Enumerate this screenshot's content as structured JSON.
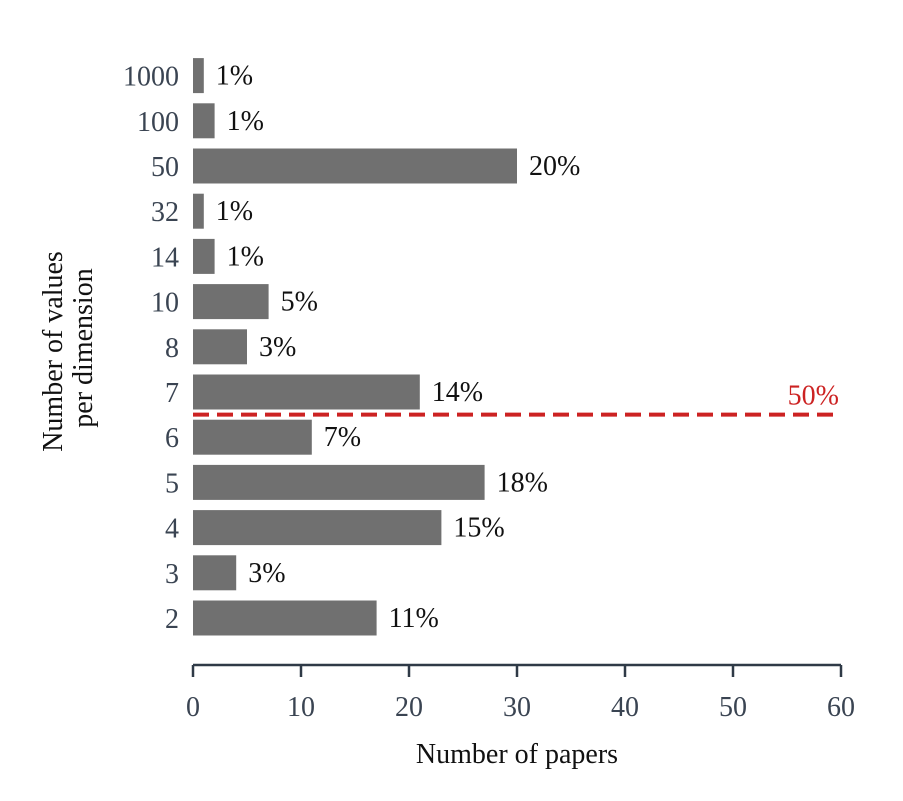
{
  "chart_data": {
    "type": "bar",
    "orientation": "horizontal",
    "categories": [
      "2",
      "3",
      "4",
      "5",
      "6",
      "7",
      "8",
      "10",
      "14",
      "32",
      "50",
      "100",
      "1000"
    ],
    "values": [
      17,
      4,
      23,
      27,
      11,
      21,
      5,
      7,
      2,
      1,
      30,
      2,
      1
    ],
    "data_labels": [
      "11%",
      "3%",
      "15%",
      "18%",
      "7%",
      "14%",
      "3%",
      "5%",
      "1%",
      "1%",
      "20%",
      "1%",
      "1%"
    ],
    "xlabel": "Number of papers",
    "ylabel_lines": [
      "Number of values",
      "per dimension"
    ],
    "xlim": [
      0,
      60
    ],
    "x_ticks": [
      0,
      10,
      20,
      30,
      40,
      50,
      60
    ],
    "grid": false,
    "bar_color": "#707070",
    "axis_color": "#2f3a47",
    "reference_line": {
      "label": "50%",
      "color": "#cc2222",
      "style": "dashed",
      "between_categories": [
        "6",
        "7"
      ]
    }
  }
}
